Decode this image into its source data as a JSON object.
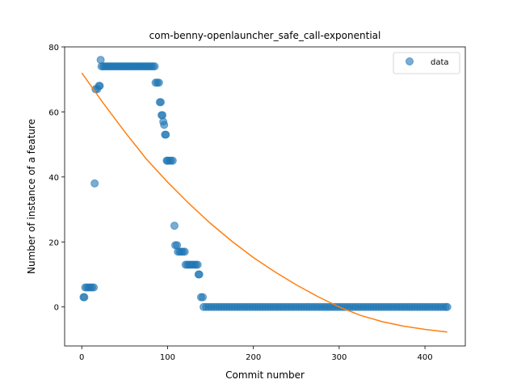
{
  "chart_data": {
    "type": "scatter",
    "title": "com-benny-openlauncher_safe_call-exponential",
    "xlabel": "Commit number",
    "ylabel": "Number of instance of a feature",
    "xlim": [
      -20,
      447
    ],
    "ylim": [
      -12,
      80
    ],
    "xticks": [
      0,
      100,
      200,
      300,
      400
    ],
    "yticks": [
      0,
      20,
      40,
      60,
      80
    ],
    "legend": {
      "position": "top-right",
      "entries": [
        "data"
      ]
    },
    "colors": {
      "data": "#1f77b4",
      "fit": "#ff7f0e"
    },
    "series": [
      {
        "name": "data",
        "kind": "scatter",
        "points": [
          [
            2,
            3
          ],
          [
            3,
            3
          ],
          [
            4,
            6
          ],
          [
            6,
            6
          ],
          [
            8,
            6
          ],
          [
            10,
            6
          ],
          [
            12,
            6
          ],
          [
            14,
            6
          ],
          [
            15,
            38
          ],
          [
            16,
            67
          ],
          [
            18,
            67
          ],
          [
            20,
            68
          ],
          [
            21,
            68
          ],
          [
            22,
            76
          ],
          [
            23,
            74
          ],
          [
            25,
            74
          ],
          [
            27,
            74
          ],
          [
            29,
            74
          ],
          [
            31,
            74
          ],
          [
            33,
            74
          ],
          [
            35,
            74
          ],
          [
            37,
            74
          ],
          [
            39,
            74
          ],
          [
            41,
            74
          ],
          [
            43,
            74
          ],
          [
            45,
            74
          ],
          [
            47,
            74
          ],
          [
            49,
            74
          ],
          [
            51,
            74
          ],
          [
            53,
            74
          ],
          [
            55,
            74
          ],
          [
            57,
            74
          ],
          [
            59,
            74
          ],
          [
            61,
            74
          ],
          [
            63,
            74
          ],
          [
            65,
            74
          ],
          [
            67,
            74
          ],
          [
            69,
            74
          ],
          [
            71,
            74
          ],
          [
            73,
            74
          ],
          [
            75,
            74
          ],
          [
            77,
            74
          ],
          [
            79,
            74
          ],
          [
            81,
            74
          ],
          [
            83,
            74
          ],
          [
            85,
            74
          ],
          [
            86,
            69
          ],
          [
            88,
            69
          ],
          [
            90,
            69
          ],
          [
            91,
            63
          ],
          [
            92,
            63
          ],
          [
            93,
            59
          ],
          [
            94,
            59
          ],
          [
            95,
            57
          ],
          [
            96,
            56
          ],
          [
            97,
            53
          ],
          [
            98,
            53
          ],
          [
            99,
            45
          ],
          [
            100,
            45
          ],
          [
            102,
            45
          ],
          [
            104,
            45
          ],
          [
            106,
            45
          ],
          [
            108,
            25
          ],
          [
            109,
            19
          ],
          [
            111,
            19
          ],
          [
            112,
            17
          ],
          [
            114,
            17
          ],
          [
            116,
            17
          ],
          [
            118,
            17
          ],
          [
            120,
            17
          ],
          [
            121,
            13
          ],
          [
            123,
            13
          ],
          [
            125,
            13
          ],
          [
            127,
            13
          ],
          [
            129,
            13
          ],
          [
            131,
            13
          ],
          [
            133,
            13
          ],
          [
            135,
            13
          ],
          [
            136,
            10
          ],
          [
            137,
            10
          ],
          [
            139,
            3
          ],
          [
            141,
            3
          ],
          [
            142,
            0
          ],
          [
            145,
            0
          ],
          [
            148,
            0
          ],
          [
            151,
            0
          ],
          [
            154,
            0
          ],
          [
            157,
            0
          ],
          [
            160,
            0
          ],
          [
            163,
            0
          ],
          [
            166,
            0
          ],
          [
            169,
            0
          ],
          [
            172,
            0
          ],
          [
            175,
            0
          ],
          [
            178,
            0
          ],
          [
            181,
            0
          ],
          [
            184,
            0
          ],
          [
            187,
            0
          ],
          [
            190,
            0
          ],
          [
            193,
            0
          ],
          [
            196,
            0
          ],
          [
            199,
            0
          ],
          [
            202,
            0
          ],
          [
            205,
            0
          ],
          [
            208,
            0
          ],
          [
            211,
            0
          ],
          [
            214,
            0
          ],
          [
            217,
            0
          ],
          [
            220,
            0
          ],
          [
            223,
            0
          ],
          [
            226,
            0
          ],
          [
            229,
            0
          ],
          [
            232,
            0
          ],
          [
            235,
            0
          ],
          [
            238,
            0
          ],
          [
            241,
            0
          ],
          [
            244,
            0
          ],
          [
            247,
            0
          ],
          [
            250,
            0
          ],
          [
            253,
            0
          ],
          [
            256,
            0
          ],
          [
            259,
            0
          ],
          [
            262,
            0
          ],
          [
            265,
            0
          ],
          [
            268,
            0
          ],
          [
            271,
            0
          ],
          [
            274,
            0
          ],
          [
            277,
            0
          ],
          [
            280,
            0
          ],
          [
            283,
            0
          ],
          [
            286,
            0
          ],
          [
            289,
            0
          ],
          [
            292,
            0
          ],
          [
            295,
            0
          ],
          [
            298,
            0
          ],
          [
            301,
            0
          ],
          [
            304,
            0
          ],
          [
            307,
            0
          ],
          [
            310,
            0
          ],
          [
            313,
            0
          ],
          [
            316,
            0
          ],
          [
            319,
            0
          ],
          [
            322,
            0
          ],
          [
            325,
            0
          ],
          [
            328,
            0
          ],
          [
            331,
            0
          ],
          [
            334,
            0
          ],
          [
            337,
            0
          ],
          [
            340,
            0
          ],
          [
            343,
            0
          ],
          [
            346,
            0
          ],
          [
            349,
            0
          ],
          [
            352,
            0
          ],
          [
            355,
            0
          ],
          [
            358,
            0
          ],
          [
            361,
            0
          ],
          [
            364,
            0
          ],
          [
            367,
            0
          ],
          [
            370,
            0
          ],
          [
            373,
            0
          ],
          [
            376,
            0
          ],
          [
            379,
            0
          ],
          [
            382,
            0
          ],
          [
            385,
            0
          ],
          [
            388,
            0
          ],
          [
            391,
            0
          ],
          [
            394,
            0
          ],
          [
            397,
            0
          ],
          [
            400,
            0
          ],
          [
            403,
            0
          ],
          [
            406,
            0
          ],
          [
            409,
            0
          ],
          [
            412,
            0
          ],
          [
            415,
            0
          ],
          [
            418,
            0
          ],
          [
            421,
            0
          ],
          [
            424,
            0
          ],
          [
            426,
            0
          ]
        ]
      },
      {
        "name": "",
        "kind": "line",
        "points": [
          [
            0,
            72
          ],
          [
            25,
            62.7
          ],
          [
            50,
            53.9
          ],
          [
            75,
            45.6
          ],
          [
            100,
            38.4
          ],
          [
            125,
            31.8
          ],
          [
            150,
            25.7
          ],
          [
            175,
            20.2
          ],
          [
            200,
            15.2
          ],
          [
            225,
            10.8
          ],
          [
            250,
            6.8
          ],
          [
            275,
            3.2
          ],
          [
            300,
            0
          ],
          [
            325,
            -2.6
          ],
          [
            350,
            -4.5
          ],
          [
            375,
            -5.9
          ],
          [
            400,
            -6.9
          ],
          [
            426,
            -7.7
          ]
        ]
      }
    ]
  }
}
